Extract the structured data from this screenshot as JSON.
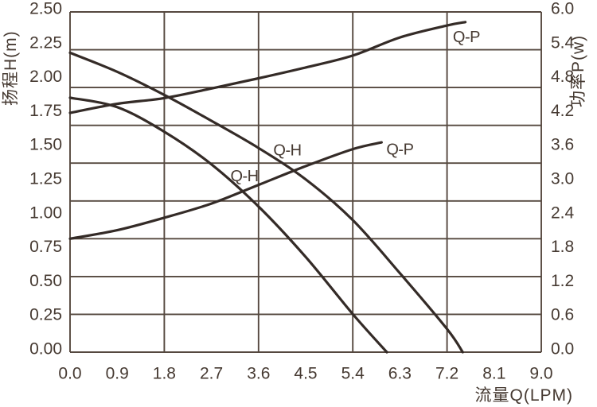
{
  "chart_data": {
    "type": "line",
    "title": "",
    "xlabel": "流量Q(LPM)",
    "ylabel_left": "扬程H(m)",
    "ylabel_right": "功率P(w)",
    "xlim": [
      0,
      9
    ],
    "ylim_left": [
      0,
      2.5
    ],
    "ylim_right": [
      0,
      6
    ],
    "x_ticks": [
      "0.0",
      "0.9",
      "1.8",
      "2.7",
      "3.6",
      "4.5",
      "5.4",
      "6.3",
      "7.2",
      "8.1",
      "9.0"
    ],
    "y_left_ticks": [
      "2.50",
      "2.25",
      "2.00",
      "1.75",
      "1.50",
      "1.25",
      "1.00",
      "0.75",
      "0.50",
      "0.25",
      "0.00"
    ],
    "y_right_ticks": [
      "6.0",
      "5.4",
      "4.8",
      "4.2",
      "3.6",
      "3.0",
      "2.4",
      "1.8",
      "1.2",
      "0.6",
      "0.0"
    ],
    "grid": {
      "h_lines": 10,
      "v_values": [
        0,
        1.8,
        3.6,
        5.4,
        7.2,
        9
      ]
    },
    "series": [
      {
        "id": "qh-upper",
        "label": "Q-H",
        "axis": "left",
        "x": [
          0,
          0.9,
          1.8,
          2.7,
          3.6,
          4.5,
          5.4,
          6.3,
          7.2,
          7.5
        ],
        "y": [
          2.2,
          2.06,
          1.89,
          1.7,
          1.5,
          1.27,
          0.97,
          0.58,
          0.17,
          0.0
        ]
      },
      {
        "id": "qh-lower",
        "label": "Q-H",
        "axis": "left",
        "x": [
          0,
          0.9,
          1.8,
          2.7,
          3.6,
          4.5,
          5.4,
          6.05
        ],
        "y": [
          1.87,
          1.8,
          1.62,
          1.38,
          1.07,
          0.7,
          0.28,
          0.0
        ]
      },
      {
        "id": "qp-upper",
        "label": "Q-P",
        "axis": "right",
        "x": [
          0,
          0.9,
          1.8,
          2.7,
          3.6,
          4.5,
          5.4,
          6.3,
          7.2,
          7.55
        ],
        "y": [
          4.22,
          4.38,
          4.48,
          4.65,
          4.83,
          5.02,
          5.23,
          5.55,
          5.76,
          5.82
        ]
      },
      {
        "id": "qp-lower",
        "label": "Q-P",
        "axis": "right",
        "x": [
          0,
          0.9,
          1.8,
          2.7,
          3.6,
          4.5,
          5.4,
          5.95
        ],
        "y": [
          2.0,
          2.15,
          2.37,
          2.62,
          2.95,
          3.28,
          3.58,
          3.7
        ]
      }
    ],
    "annotations": [
      {
        "text": "Q-H",
        "x": 4.15,
        "y": 1.48,
        "axis": "left"
      },
      {
        "text": "Q-H",
        "x": 3.33,
        "y": 1.29,
        "axis": "left"
      },
      {
        "text": "Q-P",
        "x": 7.57,
        "y": 5.55,
        "axis": "right"
      },
      {
        "text": "Q-P",
        "x": 6.3,
        "y": 3.57,
        "axis": "right"
      }
    ],
    "legend_position": "none",
    "colors": {
      "background": "#ffffff",
      "text": "#463a32",
      "grid": "#55483f",
      "curve": "#342b27"
    }
  }
}
